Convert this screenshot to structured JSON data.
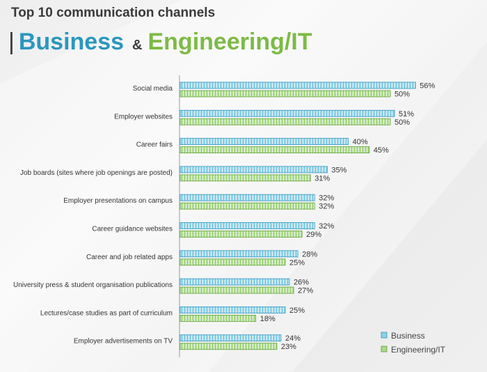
{
  "header": {
    "title": "Top 10 communication channels",
    "subtitle_bar": "|",
    "subtitle_part1": "Business",
    "subtitle_amp": "&",
    "subtitle_part2": "Engineering/IT"
  },
  "colors": {
    "business": "#8ecfe6",
    "business_stroke": "#2a97bf",
    "engineering": "#a9d88a",
    "engineering_stroke": "#5fa033"
  },
  "chart_data": {
    "type": "bar",
    "orientation": "horizontal",
    "categories": [
      "Social media",
      "Employer websites",
      "Career fairs",
      "Job boards (sites where job openings are posted)",
      "Employer presentations on campus",
      "Career guidance websites",
      "Career and job related apps",
      "University press & student organisation publications",
      "Lectures/case studies as part of curriculum",
      "Employer advertisements on TV"
    ],
    "series": [
      {
        "name": "Business",
        "values": [
          56,
          51,
          40,
          35,
          32,
          32,
          28,
          26,
          25,
          24
        ]
      },
      {
        "name": "Engineering/IT",
        "values": [
          50,
          50,
          45,
          31,
          32,
          29,
          25,
          27,
          18,
          23
        ]
      }
    ],
    "value_suffix": "%",
    "legend_position": "bottom-right",
    "grid": false
  }
}
